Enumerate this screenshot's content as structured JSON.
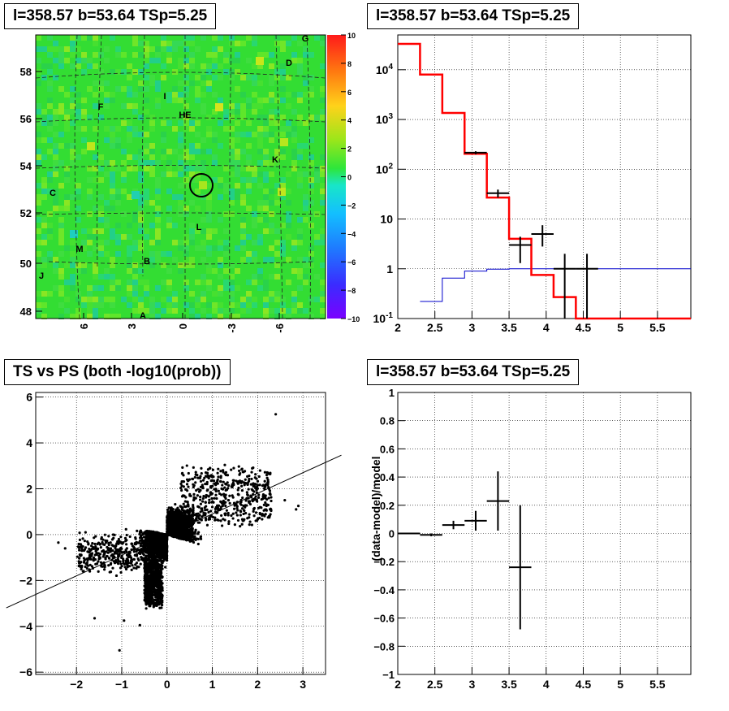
{
  "colors": {
    "model_line": "#ff0000",
    "bg_model_line": "#0000cc",
    "data_points": "#000000",
    "map_base": "#33dd33"
  },
  "chart_data": [
    {
      "id": "skymap",
      "type": "heatmap",
      "title": "l=358.57 b=53.64 TSp=5.25",
      "x_ticks": [
        "6",
        "3",
        "0",
        "-3",
        "-6"
      ],
      "y_ticks": [
        "48",
        "50",
        "52",
        "54",
        "56",
        "58"
      ],
      "colorbar": {
        "range": [
          -10,
          10
        ],
        "ticks": [
          "10",
          "8",
          "6",
          "4",
          "2",
          "0",
          "−2",
          "−4",
          "−6",
          "−8",
          "−10"
        ]
      },
      "labels": [
        "G",
        "D",
        "I",
        "HE",
        "F",
        "K",
        "C",
        "L",
        "M",
        "B",
        "J",
        "A"
      ],
      "marker": "circle at map center"
    },
    {
      "id": "spectrum",
      "type": "line",
      "title": "l=358.57 b=53.64 TSp=5.25",
      "yscale": "log",
      "xlim": [
        2,
        5.95
      ],
      "ylim": [
        0.1,
        50000
      ],
      "x_ticks": [
        "2",
        "2.5",
        "3",
        "3.5",
        "4",
        "4.5",
        "5",
        "5.5"
      ],
      "y_ticks": [
        "10^-1",
        "1",
        "10",
        "10^2",
        "10^3",
        "10^4"
      ],
      "model_steps": [
        {
          "x0": 2.0,
          "x1": 2.3,
          "y": 33000
        },
        {
          "x0": 2.3,
          "x1": 2.6,
          "y": 8000
        },
        {
          "x0": 2.6,
          "x1": 2.9,
          "y": 1350
        },
        {
          "x0": 2.9,
          "x1": 3.2,
          "y": 205
        },
        {
          "x0": 3.2,
          "x1": 3.5,
          "y": 27
        },
        {
          "x0": 3.5,
          "x1": 3.8,
          "y": 4
        },
        {
          "x0": 3.8,
          "x1": 4.1,
          "y": 0.75
        },
        {
          "x0": 4.1,
          "x1": 4.4,
          "y": 0.27
        },
        {
          "x0": 4.4,
          "x1": 5.95,
          "y": 0.1
        }
      ],
      "background_steps": [
        {
          "x0": 2.3,
          "x1": 2.6,
          "y": 0.22
        },
        {
          "x0": 2.6,
          "x1": 2.9,
          "y": 0.65
        },
        {
          "x0": 2.9,
          "x1": 3.2,
          "y": 0.9
        },
        {
          "x0": 3.2,
          "x1": 3.5,
          "y": 0.98
        },
        {
          "x0": 3.5,
          "x1": 5.95,
          "y": 1.0
        }
      ],
      "data_points": [
        {
          "x": 3.05,
          "xerr": 0.15,
          "y": 215,
          "ylo": 200,
          "yhi": 230
        },
        {
          "x": 3.35,
          "xerr": 0.15,
          "y": 33,
          "ylo": 27,
          "yhi": 39
        },
        {
          "x": 3.65,
          "xerr": 0.15,
          "y": 3,
          "ylo": 1.3,
          "yhi": 4.4
        },
        {
          "x": 3.95,
          "xerr": 0.15,
          "y": 5,
          "ylo": 2.8,
          "yhi": 7.5
        },
        {
          "x": 4.25,
          "xerr": 0.15,
          "y": 1,
          "ylo": 0.1,
          "yhi": 2.0
        },
        {
          "x": 4.55,
          "xerr": 0.15,
          "y": 1,
          "ylo": 0.1,
          "yhi": 2.0
        }
      ]
    },
    {
      "id": "ts_vs_ps",
      "type": "scatter",
      "title": "TS vs PS (both -log10(prob))",
      "xlim": [
        -2.9,
        3.5
      ],
      "ylim": [
        -6.1,
        6.2
      ],
      "x_ticks": [
        "−2",
        "−1",
        "0",
        "1",
        "2",
        "3"
      ],
      "y_ticks": [
        "−6",
        "−4",
        "−2",
        "0",
        "2",
        "4",
        "6"
      ],
      "fit_line": {
        "slope": 0.9,
        "intercept": 0
      },
      "outliers": [
        {
          "x": 2.4,
          "y": 5.25
        },
        {
          "x": -1.05,
          "y": -5.05
        },
        {
          "x": 2.85,
          "y": 1.1
        },
        {
          "x": 2.9,
          "y": 1.25
        },
        {
          "x": -2.4,
          "y": -0.35
        },
        {
          "x": -2.25,
          "y": -0.6
        },
        {
          "x": -1.6,
          "y": -3.65
        },
        {
          "x": -0.95,
          "y": -3.75
        },
        {
          "x": -0.6,
          "y": -3.95
        },
        {
          "x": 2.6,
          "y": 1.5
        },
        {
          "x": 2.2,
          "y": 2.6
        },
        {
          "x": -1.8,
          "y": 0.1
        }
      ]
    },
    {
      "id": "residuals",
      "type": "scatter",
      "title": "l=358.57 b=53.64 TSp=5.25",
      "ylabel": "(data-model)/model",
      "xlim": [
        2,
        5.95
      ],
      "ylim": [
        -1,
        1
      ],
      "x_ticks": [
        "2",
        "2.5",
        "3",
        "3.5",
        "4",
        "4.5",
        "5",
        "5.5"
      ],
      "y_ticks": [
        "−1",
        "−0.8",
        "−0.6",
        "−0.4",
        "−0.2",
        "0",
        "0.2",
        "0.4",
        "0.6",
        "0.8",
        "1"
      ],
      "points": [
        {
          "x": 2.15,
          "xerr": 0.15,
          "y": 0.0,
          "yerr": 0.005
        },
        {
          "x": 2.45,
          "xerr": 0.15,
          "y": -0.01,
          "yerr": 0.01
        },
        {
          "x": 2.75,
          "xerr": 0.15,
          "y": 0.06,
          "yerr": 0.03
        },
        {
          "x": 3.05,
          "xerr": 0.15,
          "y": 0.09,
          "yerr": 0.07
        },
        {
          "x": 3.35,
          "xerr": 0.15,
          "y": 0.23,
          "yerr": 0.21
        },
        {
          "x": 3.65,
          "xerr": 0.15,
          "y": -0.24,
          "yerr": 0.44
        }
      ]
    }
  ]
}
